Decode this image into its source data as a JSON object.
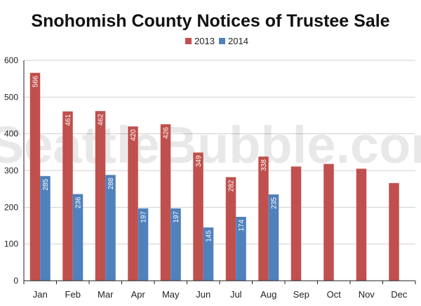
{
  "watermark": "SeattleBubble.com",
  "chart_data": {
    "type": "bar",
    "title": "Snohomish County Notices of Trustee Sale",
    "xlabel": "",
    "ylabel": "",
    "categories": [
      "Jan",
      "Feb",
      "Mar",
      "Apr",
      "May",
      "Jun",
      "Jul",
      "Aug",
      "Sep",
      "Oct",
      "Nov",
      "Dec"
    ],
    "series": [
      {
        "name": "2013",
        "color": "#c0504d",
        "values": [
          566,
          461,
          462,
          420,
          426,
          349,
          282,
          338,
          311,
          318,
          305,
          266
        ]
      },
      {
        "name": "2014",
        "color": "#4f81bd",
        "values": [
          285,
          236,
          288,
          197,
          197,
          145,
          174,
          235,
          null,
          null,
          null,
          null
        ]
      }
    ],
    "ylim": [
      0,
      600
    ],
    "yticks": [
      0,
      100,
      200,
      300,
      400,
      500,
      600
    ],
    "grid": true,
    "legend": "top",
    "data_labels_shown": [
      [
        566,
        461,
        462,
        420,
        426,
        349,
        282,
        338,
        null,
        null,
        null,
        null
      ],
      [
        285,
        236,
        288,
        197,
        197,
        145,
        174,
        235,
        null,
        null,
        null,
        null
      ]
    ]
  }
}
